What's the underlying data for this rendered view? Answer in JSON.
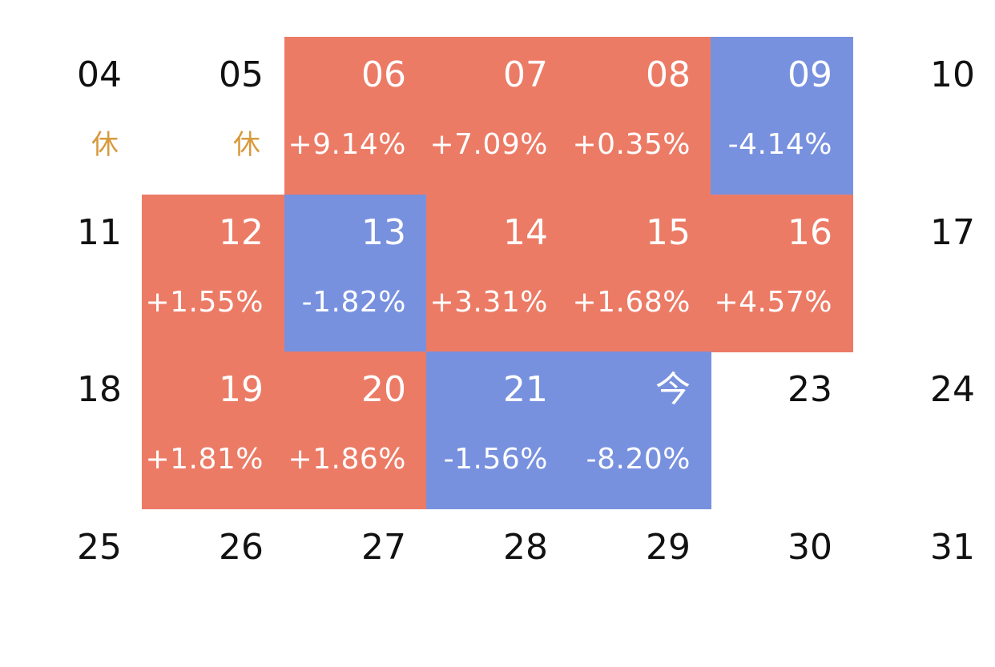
{
  "colors": {
    "up": "#EC7B66",
    "down": "#7891DF",
    "rest": "#D89A3C",
    "day_text": "#111111",
    "cell_text": "#ffffff"
  },
  "weeks": [
    [
      {
        "day": "04",
        "note": "休",
        "status": "rest"
      },
      {
        "day": "05",
        "note": "休",
        "status": "rest"
      },
      {
        "day": "06",
        "change": "+9.14%",
        "status": "up"
      },
      {
        "day": "07",
        "change": "+7.09%",
        "status": "up"
      },
      {
        "day": "08",
        "change": "+0.35%",
        "status": "up"
      },
      {
        "day": "09",
        "change": "-4.14%",
        "status": "down"
      },
      {
        "day": "10",
        "status": "none"
      }
    ],
    [
      {
        "day": "11",
        "status": "none"
      },
      {
        "day": "12",
        "change": "+1.55%",
        "status": "up"
      },
      {
        "day": "13",
        "change": "-1.82%",
        "status": "down"
      },
      {
        "day": "14",
        "change": "+3.31%",
        "status": "up"
      },
      {
        "day": "15",
        "change": "+1.68%",
        "status": "up"
      },
      {
        "day": "16",
        "change": "+4.57%",
        "status": "up"
      },
      {
        "day": "17",
        "status": "none"
      }
    ],
    [
      {
        "day": "18",
        "status": "none"
      },
      {
        "day": "19",
        "change": "+1.81%",
        "status": "up"
      },
      {
        "day": "20",
        "change": "+1.86%",
        "status": "up"
      },
      {
        "day": "21",
        "change": "-1.56%",
        "status": "down"
      },
      {
        "day": "今",
        "change": "-8.20%",
        "status": "down"
      },
      {
        "day": "23",
        "status": "none"
      },
      {
        "day": "24",
        "status": "none"
      }
    ],
    [
      {
        "day": "25",
        "status": "none"
      },
      {
        "day": "26",
        "status": "none"
      },
      {
        "day": "27",
        "status": "none"
      },
      {
        "day": "28",
        "status": "none"
      },
      {
        "day": "29",
        "status": "none"
      },
      {
        "day": "30",
        "status": "none"
      },
      {
        "day": "31",
        "status": "none"
      }
    ]
  ]
}
